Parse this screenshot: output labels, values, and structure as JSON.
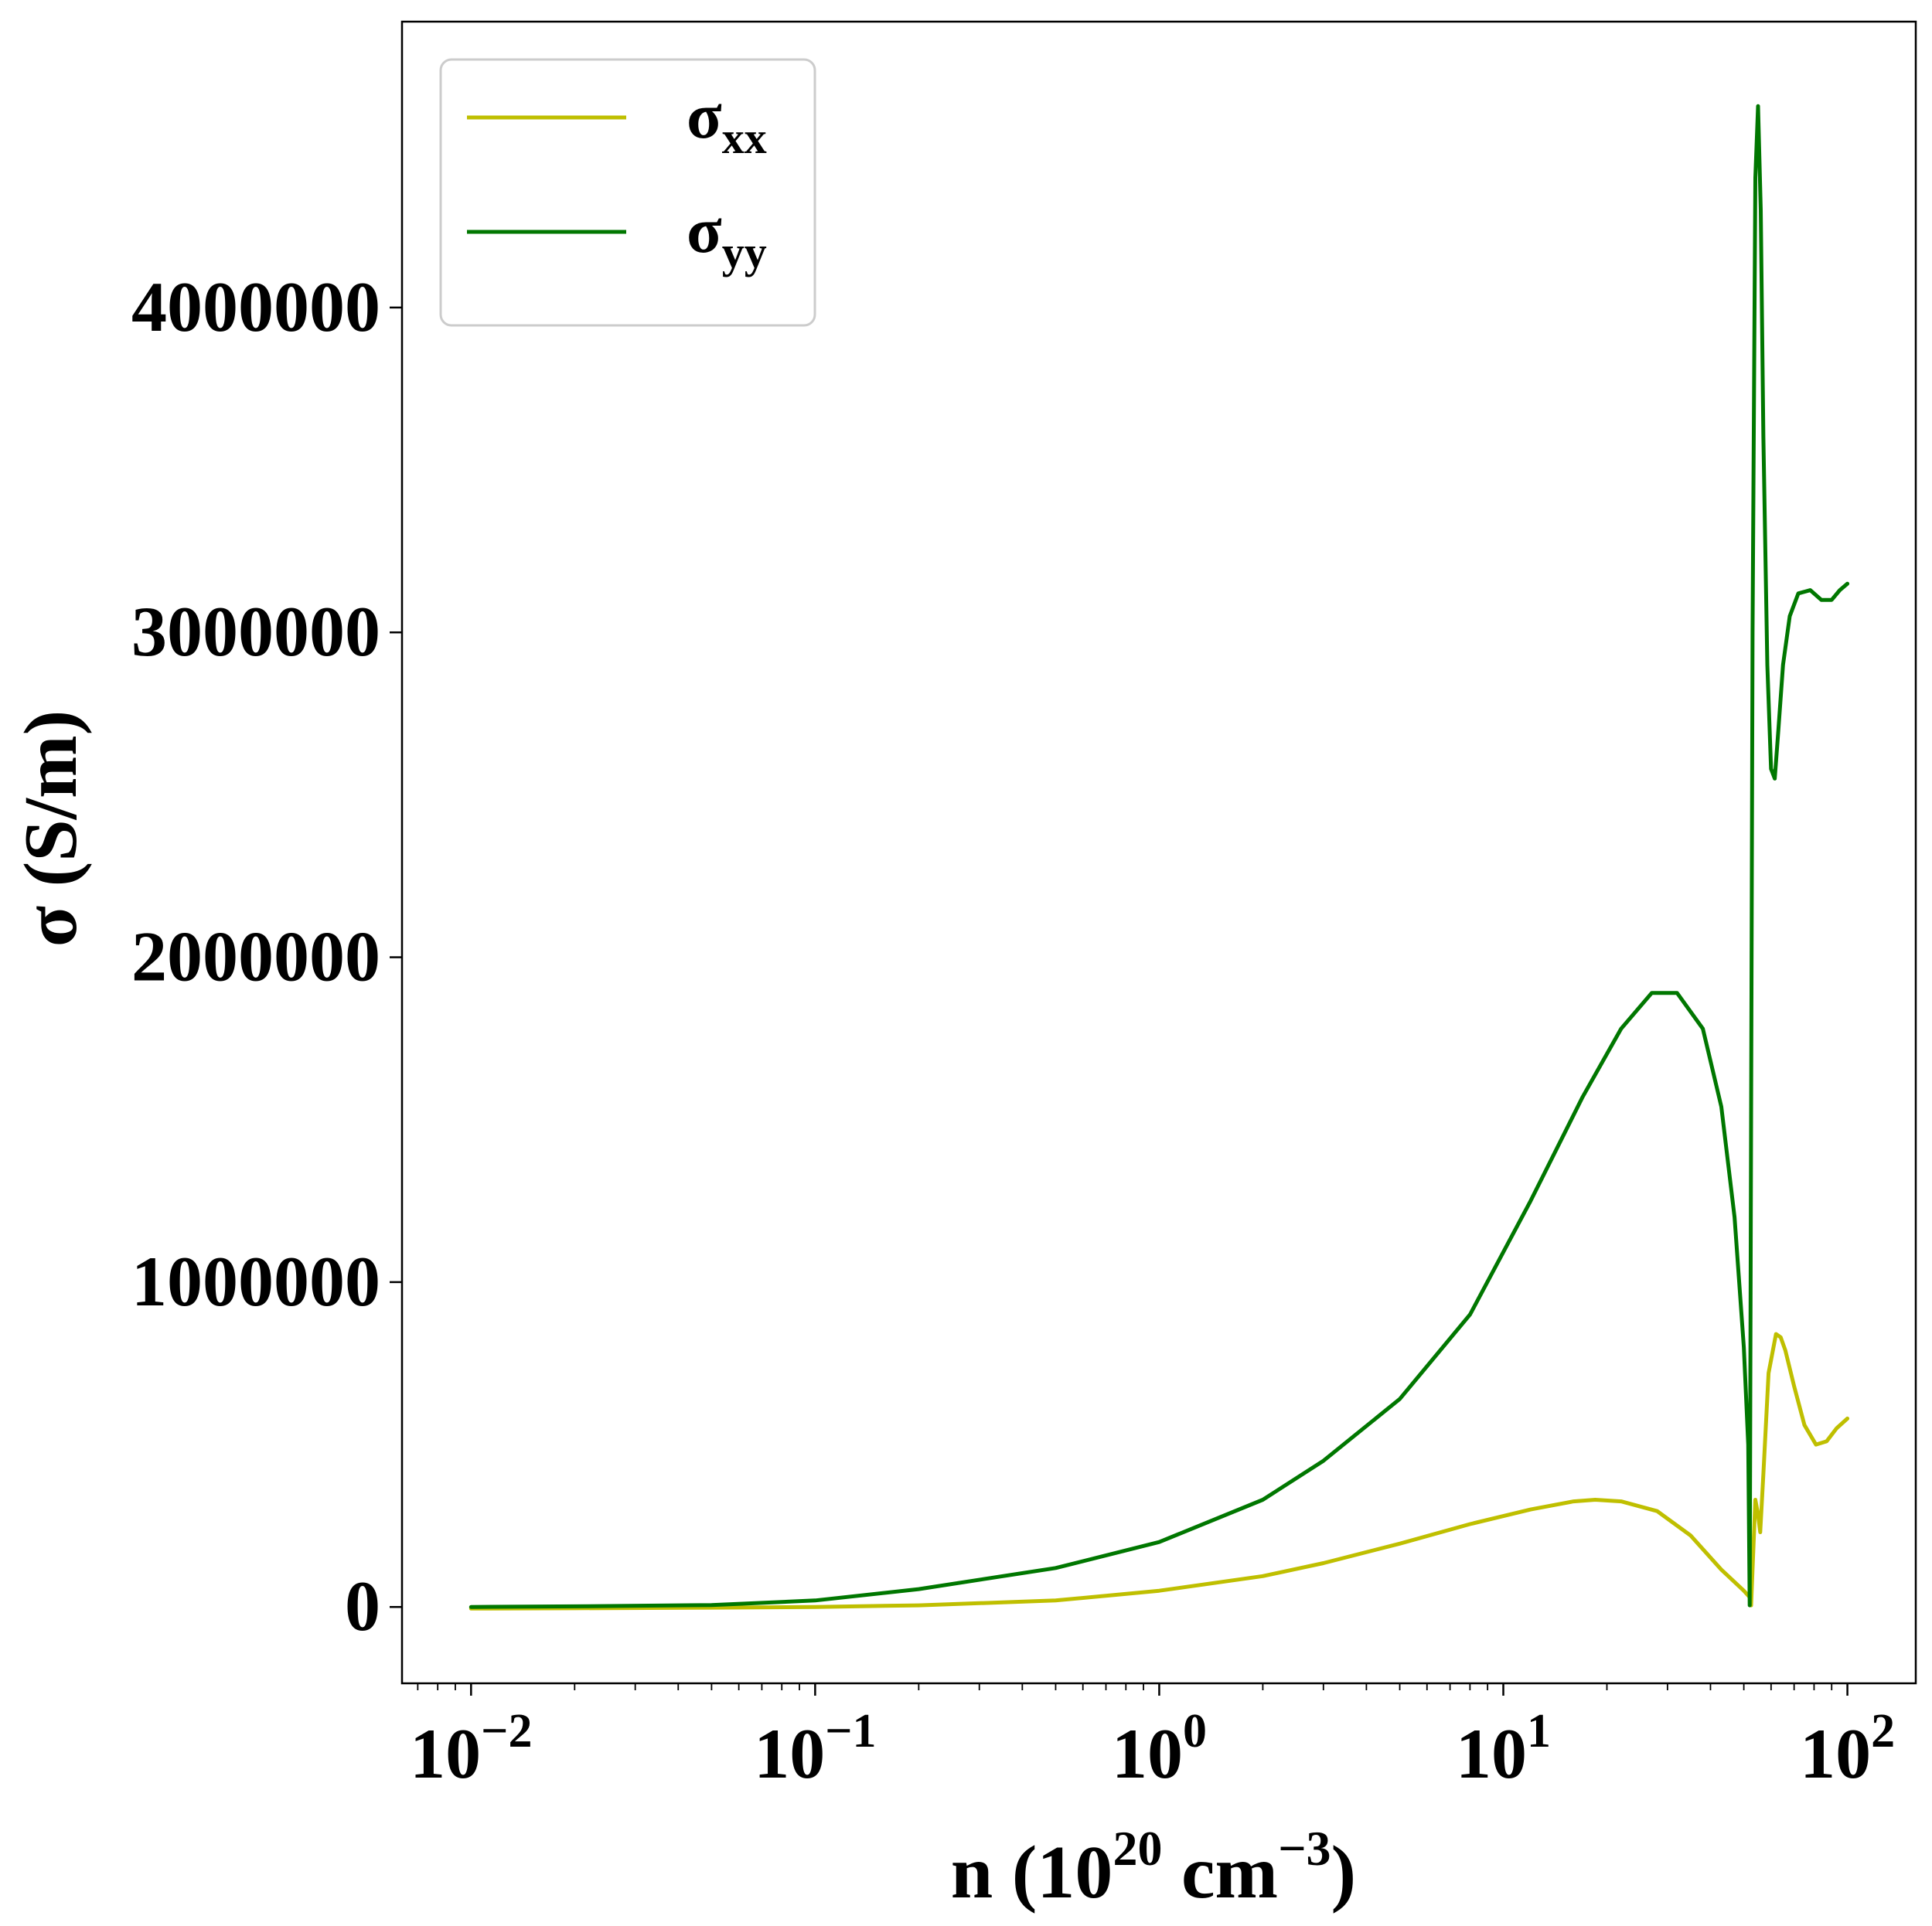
{
  "chart_data": {
    "type": "line",
    "xscale": "log",
    "xlabel": {
      "base": "n (10",
      "exp1": "20",
      "mid": " cm",
      "exp2": "−3",
      "tail": ")"
    },
    "ylabel": "σ (S/m)",
    "xlim": [
      0.0063,
      158
    ],
    "ylim": [
      -235000,
      4880000
    ],
    "xticks": [
      {
        "value": 0.01,
        "base": "10",
        "exp": "−2"
      },
      {
        "value": 0.1,
        "base": "10",
        "exp": "−1"
      },
      {
        "value": 1,
        "base": "10",
        "exp": "0"
      },
      {
        "value": 10,
        "base": "10",
        "exp": "1"
      },
      {
        "value": 100,
        "base": "10",
        "exp": "2"
      }
    ],
    "yticks": [
      {
        "value": 0,
        "label": "0"
      },
      {
        "value": 1000000,
        "label": "1000000"
      },
      {
        "value": 2000000,
        "label": "2000000"
      },
      {
        "value": 3000000,
        "label": "3000000"
      },
      {
        "value": 4000000,
        "label": "4000000"
      }
    ],
    "grid": false,
    "legend_position": "top-left",
    "series": [
      {
        "name_base": "σ",
        "name_sub": "xx",
        "color": "#bfbf00",
        "x": [
          0.01,
          0.02,
          0.05,
          0.1,
          0.2,
          0.5,
          1,
          2,
          3,
          5,
          8,
          12,
          16,
          18.5,
          22,
          28,
          35,
          43,
          50,
          52,
          52.5,
          54,
          55,
          55.8,
          57,
          59,
          62,
          64,
          66,
          70,
          75,
          81,
          87,
          93,
          100
        ],
        "y": [
          -5000,
          -4000,
          -2000,
          0,
          5000,
          20000,
          50000,
          95000,
          135000,
          195000,
          255000,
          300000,
          325000,
          330000,
          325000,
          295000,
          220000,
          115000,
          50000,
          30000,
          5000,
          330000,
          285000,
          230000,
          410000,
          720000,
          840000,
          830000,
          790000,
          680000,
          560000,
          500000,
          510000,
          550000,
          580000
        ]
      },
      {
        "name_base": "σ",
        "name_sub": "yy",
        "color": "#007700",
        "x": [
          0.01,
          0.02,
          0.05,
          0.1,
          0.2,
          0.5,
          1,
          2,
          3,
          5,
          8,
          12,
          17,
          22,
          27,
          32,
          38,
          43,
          47,
          50,
          51.5,
          52,
          52.5,
          53,
          54,
          55,
          56,
          57,
          58.5,
          60,
          61.5,
          63,
          65,
          68,
          72,
          78,
          84,
          90,
          95,
          100
        ],
        "y": [
          0,
          2000,
          6000,
          20000,
          55000,
          120000,
          200000,
          330000,
          450000,
          640000,
          900000,
          1250000,
          1570000,
          1780000,
          1890000,
          1890000,
          1780000,
          1540000,
          1200000,
          800000,
          500000,
          5000,
          1500000,
          3000000,
          4400000,
          4620000,
          4300000,
          3600000,
          2900000,
          2580000,
          2550000,
          2700000,
          2900000,
          3050000,
          3120000,
          3130000,
          3100000,
          3100000,
          3130000,
          3150000
        ]
      }
    ]
  }
}
